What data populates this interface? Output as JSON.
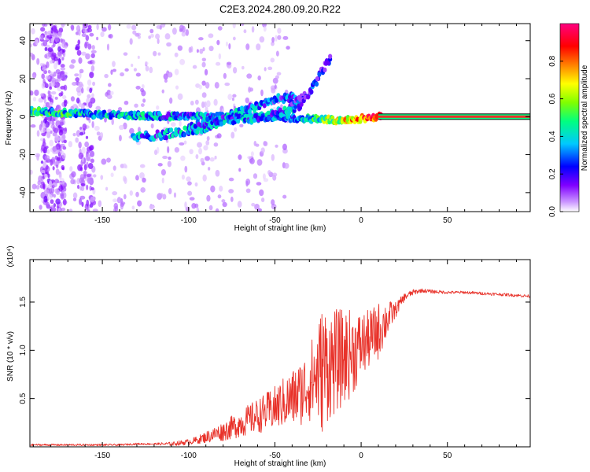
{
  "figure": {
    "title": "C2E3.2024.280.09.20.R22"
  },
  "colors": {
    "snr_line": "#e8322a",
    "spectrum_ridge": "#e8322a",
    "axis": "#000000",
    "background": "#ffffff"
  },
  "chart_data": [
    {
      "type": "heatmap",
      "xlabel": "Height of straight line (km)",
      "ylabel": "Frequency (Hz)",
      "xlim": [
        -192,
        98
      ],
      "ylim": [
        -50,
        49
      ],
      "x_ticks": [
        -150,
        -100,
        -50,
        0,
        50
      ],
      "y_ticks": [
        -40,
        -20,
        0,
        20,
        40
      ],
      "x_tick_labels": [
        "-150",
        "-100",
        "-50",
        "0",
        "50"
      ],
      "y_tick_labels": [
        "-40",
        "-20",
        "0",
        "20",
        "40"
      ],
      "grid": false,
      "colorbar": {
        "label": "Normalized spectral amplitude",
        "range": [
          0.0,
          1.0
        ],
        "ticks": [
          0.0,
          0.2,
          0.4,
          0.6,
          0.8
        ],
        "tick_labels": [
          "0.0",
          "0.2",
          "0.4",
          "0.6",
          "0.8"
        ],
        "colormap": [
          "#ffffff",
          "#cc99ff",
          "#8000ff",
          "#0000ff",
          "#00c8ff",
          "#00ff80",
          "#80ff00",
          "#ffff00",
          "#ff8000",
          "#ff0000",
          "#ff0080"
        ]
      },
      "ridges": [
        {
          "name": "",
          "x": [
            -192,
            -150,
            -100,
            -60,
            -30,
            -10,
            0,
            10,
            98
          ],
          "y": [
            3,
            1,
            0,
            0,
            -1,
            -2,
            -1,
            0,
            0
          ],
          "amplitude": [
            0.45,
            0.35,
            0.3,
            0.3,
            0.4,
            0.65,
            0.8,
            0.9,
            0.9
          ]
        },
        {
          "name": "",
          "x": [
            -132,
            -110,
            -90,
            -70,
            -50,
            -40,
            -35
          ],
          "y": [
            -11,
            -9,
            -6,
            3,
            9,
            10,
            8
          ],
          "amplitude": [
            0.3,
            0.3,
            0.35,
            0.3,
            0.25,
            0.2,
            0.2
          ]
        },
        {
          "name": "",
          "x": [
            -100,
            -80,
            -60,
            -45,
            -35
          ],
          "y": [
            -5,
            -2,
            -1,
            3,
            6
          ],
          "amplitude": [
            0.3,
            0.3,
            0.3,
            0.3,
            0.3
          ]
        },
        {
          "name": "",
          "x": [
            -40,
            -30,
            -22,
            -18
          ],
          "y": [
            6,
            12,
            25,
            30
          ],
          "amplitude": [
            0.2,
            0.2,
            0.15,
            0.15
          ]
        }
      ]
    },
    {
      "type": "line",
      "xlabel": "Height of straight line (km)",
      "ylabel": "SNR (10 * v/v)",
      "y_scale_label": "(x10⁴)",
      "xlim": [
        -192,
        98
      ],
      "ylim": [
        0.0,
        1.94
      ],
      "x_ticks": [
        -150,
        -100,
        -50,
        0,
        50
      ],
      "y_ticks": [
        0.5,
        1.0,
        1.5
      ],
      "x_tick_labels": [
        "-150",
        "-100",
        "-50",
        "0",
        "50"
      ],
      "y_tick_labels": [
        "0.5",
        "1.0",
        "1.5"
      ],
      "grid": false,
      "series": [
        {
          "name": "",
          "x": [
            -192,
            -180,
            -170,
            -160,
            -150,
            -140,
            -130,
            -120,
            -110,
            -100,
            -95,
            -90,
            -85,
            -80,
            -75,
            -70,
            -65,
            -60,
            -55,
            -50,
            -45,
            -40,
            -35,
            -30,
            -25,
            -22,
            -20,
            -15,
            -10,
            -5,
            0,
            5,
            10,
            15,
            20,
            25,
            30,
            35,
            40,
            50,
            60,
            70,
            80,
            90,
            98
          ],
          "y": [
            0.02,
            0.02,
            0.02,
            0.02,
            0.02,
            0.02,
            0.03,
            0.03,
            0.03,
            0.05,
            0.07,
            0.1,
            0.13,
            0.16,
            0.2,
            0.24,
            0.28,
            0.32,
            0.36,
            0.4,
            0.46,
            0.5,
            0.56,
            0.66,
            0.76,
            0.82,
            0.85,
            0.88,
            0.93,
            0.98,
            1.05,
            1.12,
            1.2,
            1.32,
            1.42,
            1.55,
            1.6,
            1.62,
            1.61,
            1.6,
            1.6,
            1.59,
            1.58,
            1.57,
            1.56
          ],
          "spread": [
            0.01,
            0.01,
            0.01,
            0.01,
            0.01,
            0.01,
            0.01,
            0.01,
            0.02,
            0.03,
            0.04,
            0.06,
            0.08,
            0.1,
            0.12,
            0.14,
            0.16,
            0.18,
            0.2,
            0.23,
            0.26,
            0.3,
            0.34,
            0.4,
            0.55,
            0.7,
            0.6,
            0.55,
            0.5,
            0.45,
            0.35,
            0.3,
            0.3,
            0.2,
            0.08,
            0.04,
            0.03,
            0.02,
            0.02,
            0.015,
            0.015,
            0.015,
            0.015,
            0.015,
            0.015
          ]
        }
      ]
    }
  ]
}
